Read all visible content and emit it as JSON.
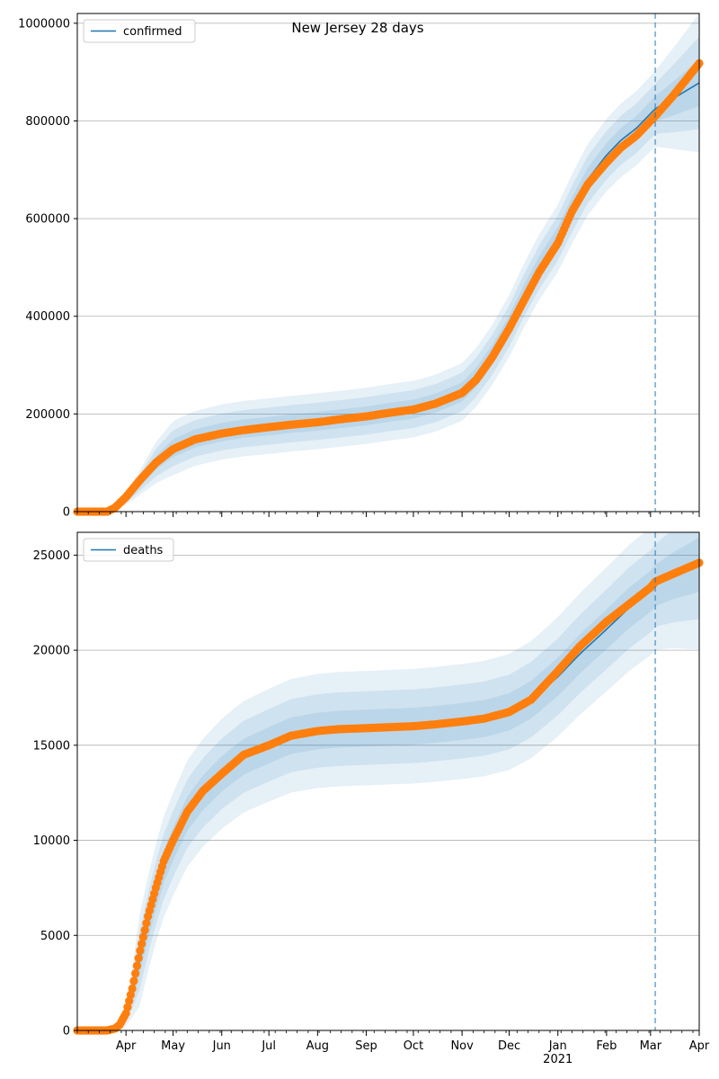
{
  "figure": {
    "title": "New Jersey 28 days",
    "colors": {
      "fit": "#1f77b4",
      "observed": "#ff7f0e",
      "band": "#1f77b4",
      "grid": "#b0b0b0",
      "forecast_line": "#1f77b4"
    }
  },
  "x_axis": {
    "start": "2020-03-01",
    "end": "2021-04-01",
    "forecast_start": "2021-03-04",
    "month_labels": [
      {
        "date": "2020-04-01",
        "label": "Apr"
      },
      {
        "date": "2020-05-01",
        "label": "May"
      },
      {
        "date": "2020-06-01",
        "label": "Jun"
      },
      {
        "date": "2020-07-01",
        "label": "Jul"
      },
      {
        "date": "2020-08-01",
        "label": "Aug"
      },
      {
        "date": "2020-09-01",
        "label": "Sep"
      },
      {
        "date": "2020-10-01",
        "label": "Oct"
      },
      {
        "date": "2020-11-01",
        "label": "Nov"
      },
      {
        "date": "2020-12-01",
        "label": "Dec"
      },
      {
        "date": "2021-01-01",
        "label": "Jan"
      },
      {
        "date": "2021-02-01",
        "label": "Feb"
      },
      {
        "date": "2021-03-01",
        "label": "Mar"
      },
      {
        "date": "2021-04-01",
        "label": "Apr"
      }
    ],
    "year_label": {
      "date": "2021-01-01",
      "label": "2021"
    }
  },
  "chart_data": [
    {
      "type": "line",
      "series": [
        {
          "name": "confirmed",
          "kind": "fit",
          "x": [
            "2020-03-01",
            "2020-03-20",
            "2020-03-25",
            "2020-04-01",
            "2020-04-10",
            "2020-04-20",
            "2020-05-01",
            "2020-05-15",
            "2020-06-01",
            "2020-06-15",
            "2020-07-01",
            "2020-07-15",
            "2020-08-01",
            "2020-08-15",
            "2020-09-01",
            "2020-09-15",
            "2020-10-01",
            "2020-10-15",
            "2020-11-01",
            "2020-11-10",
            "2020-11-20",
            "2020-12-01",
            "2020-12-10",
            "2020-12-20",
            "2021-01-01",
            "2021-01-10",
            "2021-01-20",
            "2021-02-01",
            "2021-02-10",
            "2021-02-20",
            "2021-03-01",
            "2021-03-04",
            "2021-03-15",
            "2021-04-01"
          ],
          "values": [
            0,
            0,
            5000,
            25000,
            60000,
            100000,
            130000,
            150000,
            163000,
            170000,
            175000,
            180000,
            185000,
            190000,
            196000,
            203000,
            210000,
            222000,
            245000,
            275000,
            320000,
            380000,
            440000,
            500000,
            560000,
            620000,
            680000,
            730000,
            760000,
            785000,
            815000,
            825000,
            845000,
            878000
          ]
        },
        {
          "name": "observed",
          "kind": "points",
          "x": [
            "2020-03-01",
            "2020-03-20",
            "2020-03-25",
            "2020-04-01",
            "2020-04-10",
            "2020-04-20",
            "2020-05-01",
            "2020-05-15",
            "2020-06-01",
            "2020-06-15",
            "2020-07-01",
            "2020-07-15",
            "2020-08-01",
            "2020-08-15",
            "2020-09-01",
            "2020-09-15",
            "2020-10-01",
            "2020-10-15",
            "2020-11-01",
            "2020-11-10",
            "2020-11-20",
            "2020-12-01",
            "2020-12-10",
            "2020-12-20",
            "2021-01-01",
            "2021-01-10",
            "2021-01-20",
            "2021-02-01",
            "2021-02-10",
            "2021-02-20",
            "2021-03-01",
            "2021-03-04",
            "2021-03-15",
            "2021-04-01"
          ],
          "values": [
            0,
            0,
            8000,
            30000,
            65000,
            100000,
            128000,
            148000,
            160000,
            167000,
            173000,
            178000,
            183000,
            189000,
            195000,
            202000,
            209000,
            221000,
            243000,
            270000,
            315000,
            375000,
            430000,
            490000,
            550000,
            615000,
            670000,
            715000,
            745000,
            770000,
            800000,
            810000,
            850000,
            918000
          ]
        }
      ],
      "band_spreads": [
        0.03,
        0.06,
        0.09
      ],
      "forecast_band_growth": 1.8,
      "ylim": [
        0,
        1020000
      ],
      "yticks": [
        0,
        200000,
        400000,
        600000,
        800000,
        1000000
      ],
      "legend": "top-left",
      "grid": "y",
      "title": "New Jersey 28 days",
      "legend_label": "confirmed"
    },
    {
      "type": "line",
      "series": [
        {
          "name": "deaths",
          "kind": "fit",
          "x": [
            "2020-03-01",
            "2020-03-20",
            "2020-03-25",
            "2020-03-28",
            "2020-04-01",
            "2020-04-05",
            "2020-04-10",
            "2020-04-15",
            "2020-04-20",
            "2020-04-25",
            "2020-05-01",
            "2020-05-10",
            "2020-05-20",
            "2020-06-01",
            "2020-06-15",
            "2020-07-01",
            "2020-07-15",
            "2020-08-01",
            "2020-08-15",
            "2020-09-01",
            "2020-09-15",
            "2020-10-01",
            "2020-10-15",
            "2020-11-01",
            "2020-11-15",
            "2020-12-01",
            "2020-12-15",
            "2021-01-01",
            "2021-01-15",
            "2021-02-01",
            "2021-02-15",
            "2021-03-01",
            "2021-03-04",
            "2021-03-15",
            "2021-04-01"
          ],
          "values": [
            0,
            0,
            50,
            200,
            800,
            2000,
            3800,
            5600,
            7200,
            8600,
            9800,
            11400,
            12500,
            13500,
            14400,
            15000,
            15500,
            15750,
            15850,
            15900,
            15950,
            16000,
            16100,
            16250,
            16400,
            16750,
            17400,
            18600,
            19800,
            21100,
            22200,
            23100,
            23400,
            23900,
            24500
          ]
        },
        {
          "name": "observed",
          "kind": "points",
          "x": [
            "2020-03-01",
            "2020-03-20",
            "2020-03-25",
            "2020-03-28",
            "2020-04-01",
            "2020-04-05",
            "2020-04-10",
            "2020-04-15",
            "2020-04-20",
            "2020-04-25",
            "2020-05-01",
            "2020-05-10",
            "2020-05-20",
            "2020-06-01",
            "2020-06-15",
            "2020-07-01",
            "2020-07-15",
            "2020-08-01",
            "2020-08-15",
            "2020-09-01",
            "2020-09-15",
            "2020-10-01",
            "2020-10-15",
            "2020-11-01",
            "2020-11-15",
            "2020-12-01",
            "2020-12-15",
            "2021-01-01",
            "2021-01-15",
            "2021-02-01",
            "2021-02-15",
            "2021-03-01",
            "2021-03-04",
            "2021-03-15",
            "2021-04-01"
          ],
          "values": [
            0,
            0,
            100,
            300,
            900,
            2200,
            4200,
            6000,
            7500,
            8900,
            10000,
            11500,
            12600,
            13500,
            14500,
            15000,
            15500,
            15750,
            15850,
            15900,
            15950,
            16000,
            16100,
            16250,
            16400,
            16750,
            17400,
            18900,
            20200,
            21500,
            22400,
            23300,
            23600,
            24000,
            24600
          ]
        }
      ],
      "band_spreads": [
        0.045,
        0.09,
        0.14
      ],
      "forecast_band_growth": 1.3,
      "ylim": [
        0,
        26200
      ],
      "yticks": [
        0,
        5000,
        10000,
        15000,
        20000,
        25000
      ],
      "legend": "top-left",
      "grid": "y",
      "title": "",
      "legend_label": "deaths"
    }
  ]
}
